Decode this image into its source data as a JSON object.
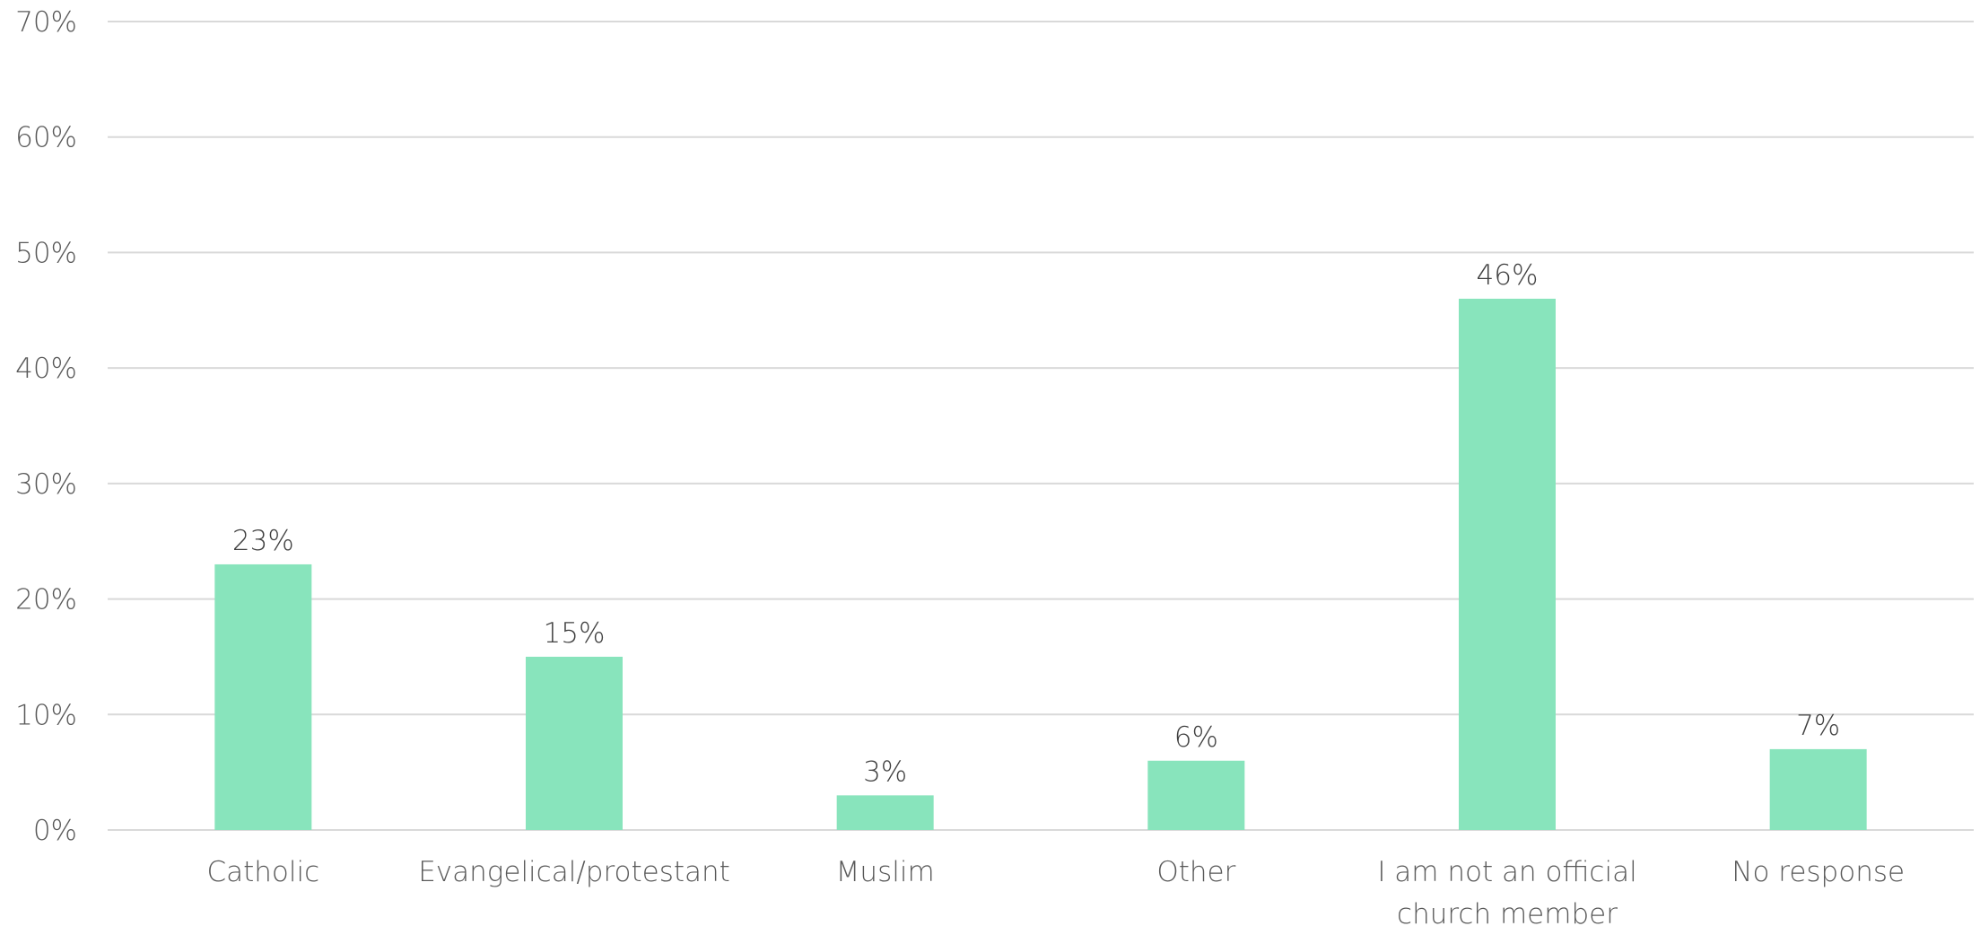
{
  "chart_data": {
    "type": "bar",
    "categories": [
      [
        "Catholic"
      ],
      [
        "Evangelical/protestant"
      ],
      [
        "Muslim"
      ],
      [
        "Other"
      ],
      [
        "I am not an official",
        "church member"
      ],
      [
        "No response"
      ]
    ],
    "values": [
      23,
      15,
      3,
      6,
      46,
      7
    ],
    "data_labels": [
      "23%",
      "15%",
      "3%",
      "6%",
      "46%",
      "7%"
    ],
    "yticks": [
      0,
      10,
      20,
      30,
      40,
      50,
      60,
      70
    ],
    "ytick_labels": [
      "0%",
      "10%",
      "20%",
      "30%",
      "40%",
      "50%",
      "60%",
      "70%"
    ],
    "ylim": [
      0,
      70
    ],
    "grid": true,
    "legend": "none",
    "colors": {
      "bar": "#88e4bc"
    }
  }
}
